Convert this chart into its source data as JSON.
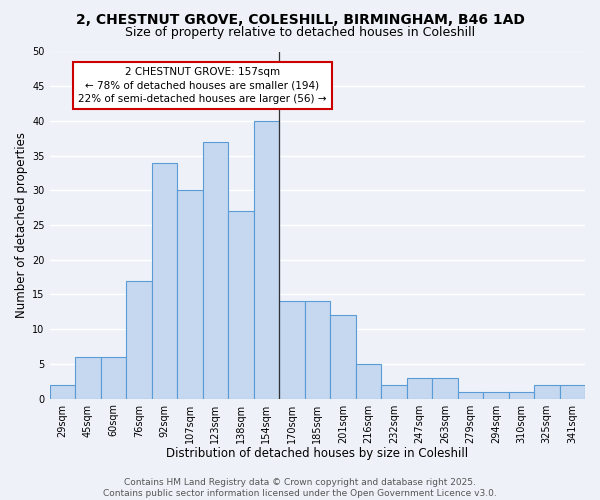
{
  "title1": "2, CHESTNUT GROVE, COLESHILL, BIRMINGHAM, B46 1AD",
  "title2": "Size of property relative to detached houses in Coleshill",
  "xlabel": "Distribution of detached houses by size in Coleshill",
  "ylabel": "Number of detached properties",
  "footer": "Contains HM Land Registry data © Crown copyright and database right 2025.\nContains public sector information licensed under the Open Government Licence v3.0.",
  "bin_labels": [
    "29sqm",
    "45sqm",
    "60sqm",
    "76sqm",
    "92sqm",
    "107sqm",
    "123sqm",
    "138sqm",
    "154sqm",
    "170sqm",
    "185sqm",
    "201sqm",
    "216sqm",
    "232sqm",
    "247sqm",
    "263sqm",
    "279sqm",
    "294sqm",
    "310sqm",
    "325sqm",
    "341sqm"
  ],
  "values": [
    2,
    6,
    6,
    17,
    34,
    30,
    37,
    27,
    40,
    14,
    14,
    12,
    5,
    2,
    3,
    3,
    1,
    1,
    1,
    2,
    2
  ],
  "bar_color": "#c5d8f0",
  "bar_edge_color": "#5b9bd5",
  "highlight_index": 8,
  "vline_color": "#333333",
  "annotation_text": "2 CHESTNUT GROVE: 157sqm\n← 78% of detached houses are smaller (194)\n22% of semi-detached houses are larger (56) →",
  "annotation_box_color": "#ffffff",
  "annotation_box_edge_color": "#cc0000",
  "ylim": [
    0,
    50
  ],
  "yticks": [
    0,
    5,
    10,
    15,
    20,
    25,
    30,
    35,
    40,
    45,
    50
  ],
  "bg_color": "#eef2f8",
  "grid_color": "#ffffff",
  "title_fontsize": 10,
  "subtitle_fontsize": 9,
  "axis_label_fontsize": 8.5,
  "tick_fontsize": 7,
  "annotation_fontsize": 7.5,
  "footer_fontsize": 6.5
}
